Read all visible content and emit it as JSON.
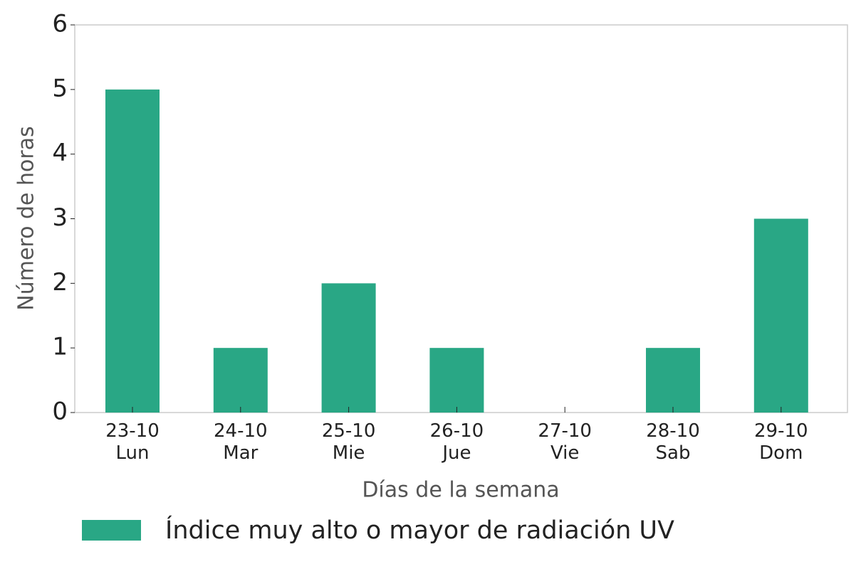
{
  "chart_data": {
    "type": "bar",
    "categories": [
      "23-10\nLun",
      "24-10\nMar",
      "25-10\nMie",
      "26-10\nJue",
      "27-10\nVie",
      "28-10\nSab",
      "29-10\nDom"
    ],
    "values": [
      5,
      1,
      2,
      1,
      0,
      1,
      3
    ],
    "color": "#29a785",
    "ylim": [
      0,
      6
    ],
    "yticks": [
      0,
      1,
      2,
      3,
      4,
      5,
      6
    ],
    "xlabel": "Días de la semana",
    "ylabel": "Número de horas",
    "legend": {
      "label": "Índice muy alto o mayor de radiación UV",
      "position": "bottom"
    },
    "grid": false
  }
}
